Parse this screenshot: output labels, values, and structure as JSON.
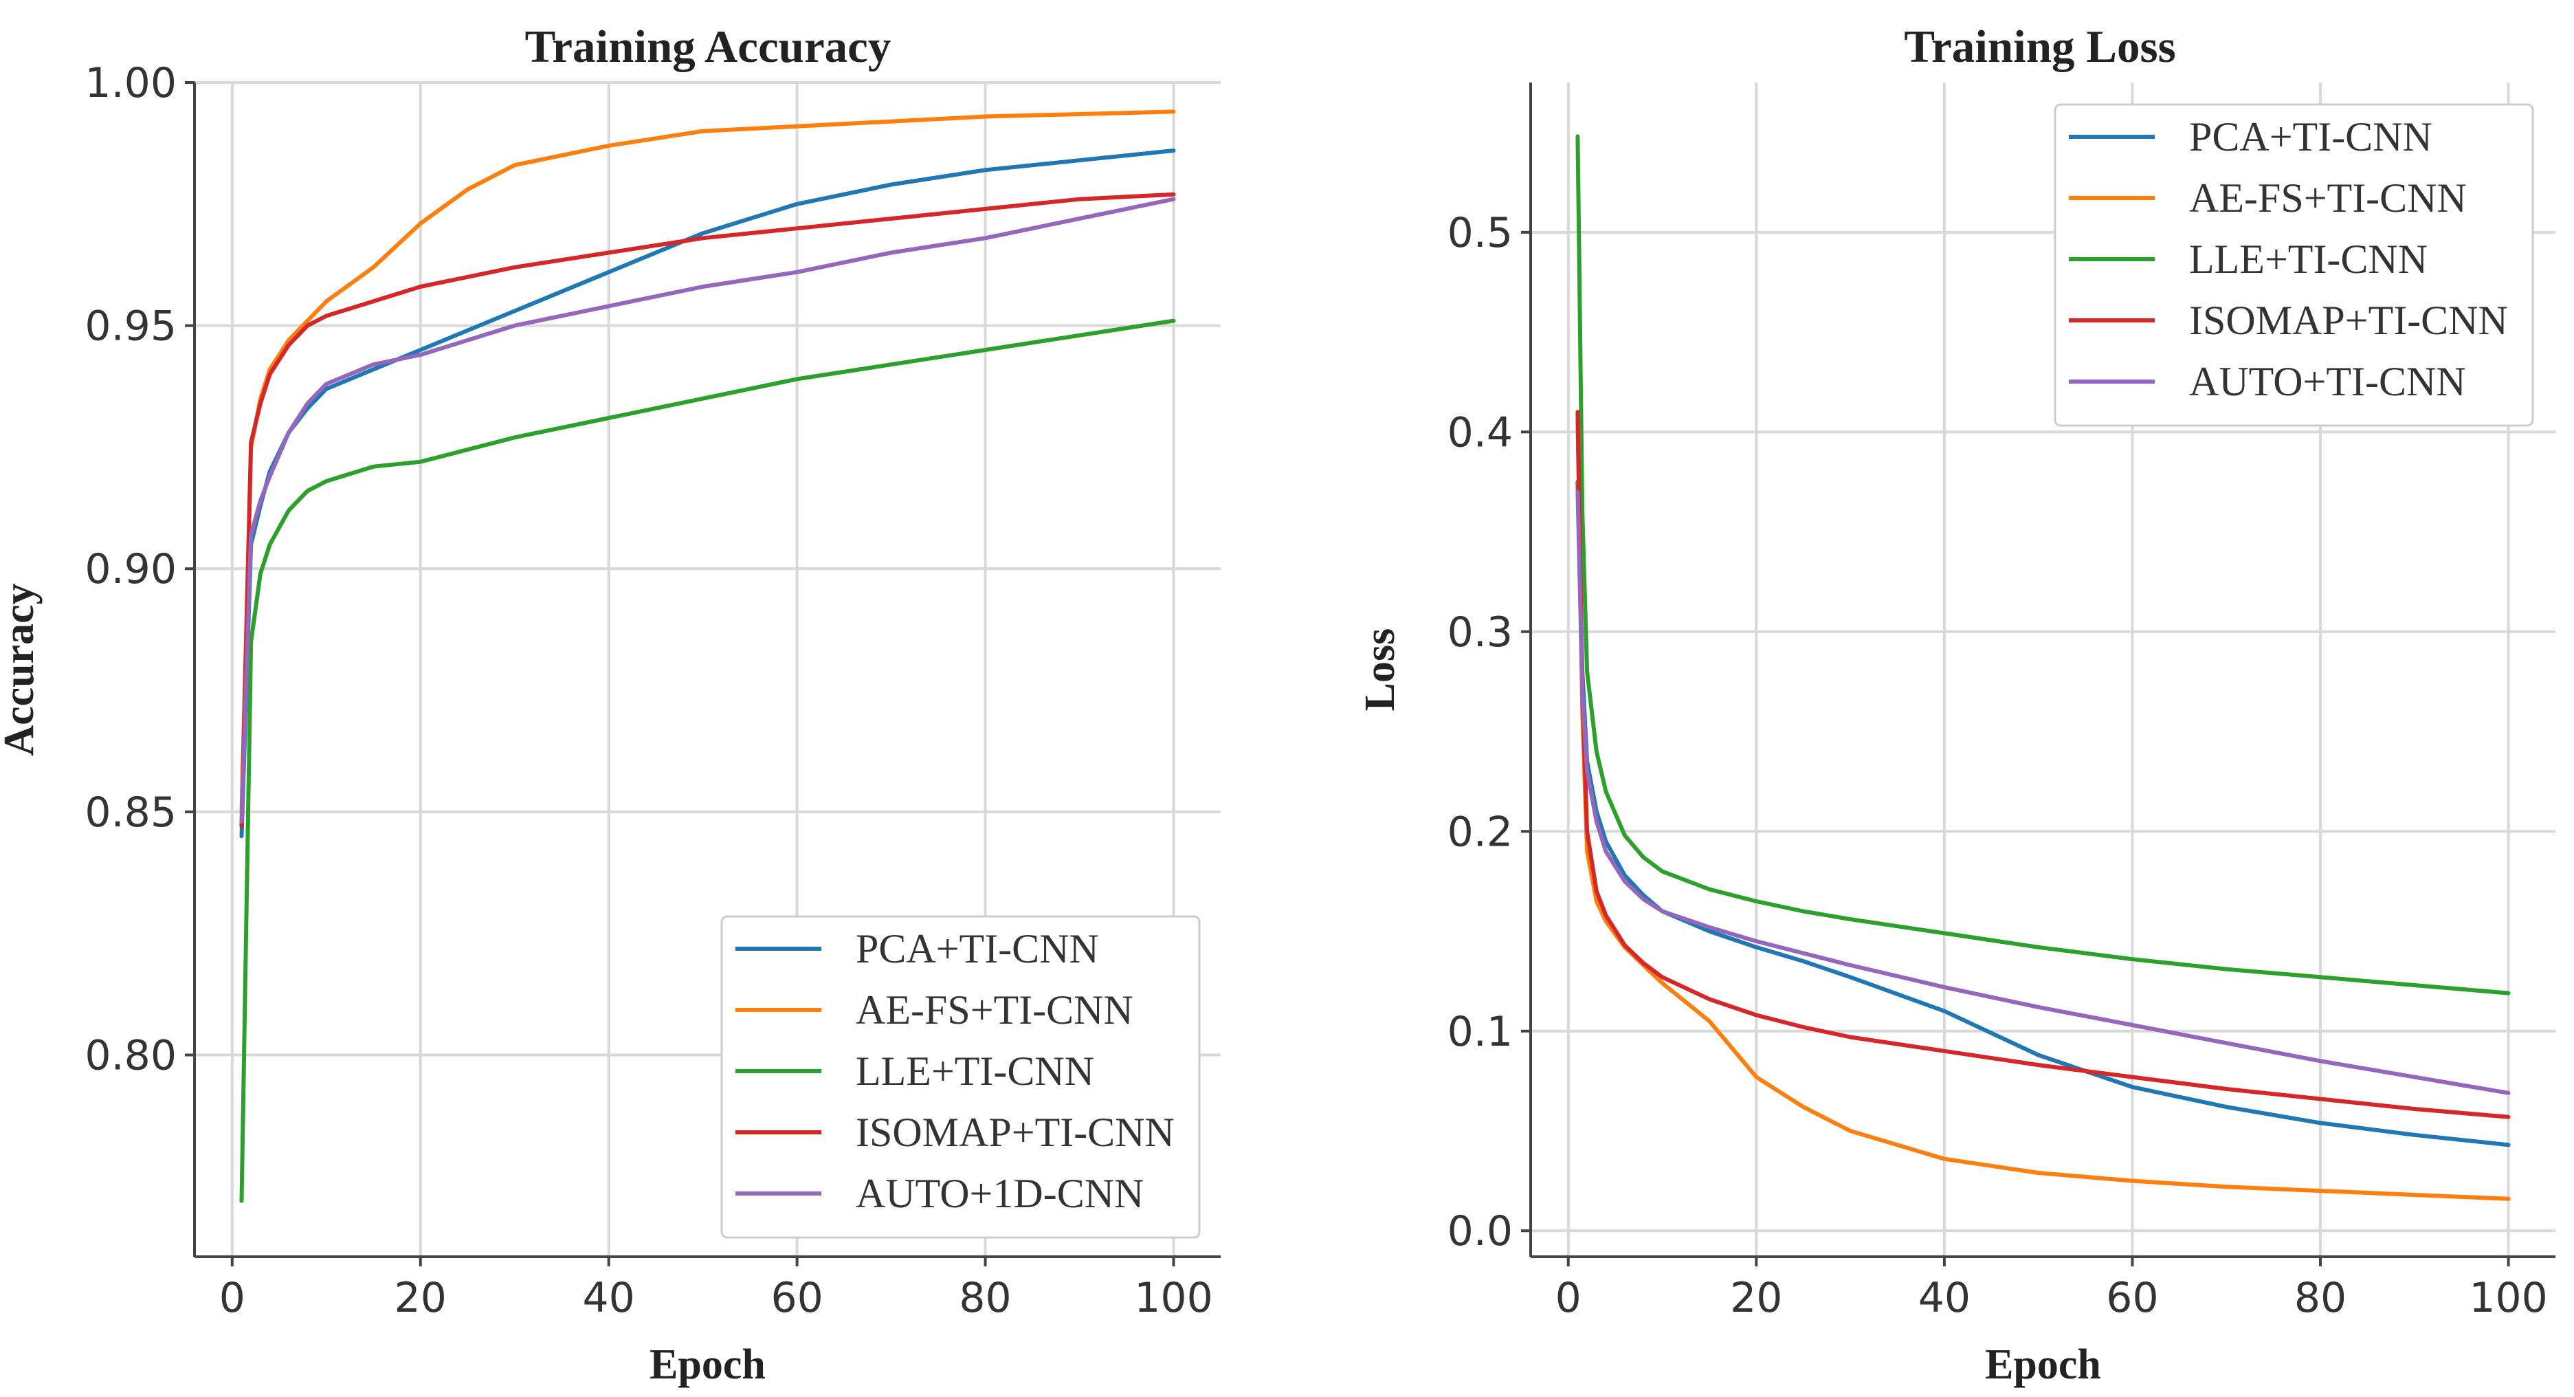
{
  "chart_data": [
    {
      "type": "line",
      "title": "Training Accuracy",
      "xlabel": "Epoch",
      "ylabel": "Accuracy",
      "xlim": [
        -4,
        105
      ],
      "ylim": [
        0.7585,
        1.0
      ],
      "xticks": [
        0,
        20,
        40,
        60,
        80,
        100
      ],
      "yticks": [
        0.8,
        0.85,
        0.9,
        0.95,
        1.0
      ],
      "ytick_labels": [
        "0.80",
        "0.85",
        "0.90",
        "0.95",
        "1.00"
      ],
      "grid": true,
      "legend_position": "lower-right",
      "series": [
        {
          "name": "PCA+TI-CNN",
          "color": "#1f77b4",
          "x": [
            1,
            2,
            3,
            4,
            6,
            8,
            10,
            15,
            20,
            30,
            40,
            50,
            60,
            70,
            80,
            90,
            100
          ],
          "y": [
            0.845,
            0.905,
            0.913,
            0.92,
            0.928,
            0.933,
            0.937,
            0.941,
            0.945,
            0.953,
            0.961,
            0.969,
            0.975,
            0.979,
            0.982,
            0.984,
            0.986
          ]
        },
        {
          "name": "AE-FS+TI-CNN",
          "color": "#ff7f0e",
          "x": [
            1,
            2,
            3,
            4,
            6,
            8,
            10,
            15,
            20,
            25,
            30,
            40,
            50,
            60,
            70,
            80,
            90,
            100
          ],
          "y": [
            0.85,
            0.925,
            0.935,
            0.941,
            0.947,
            0.951,
            0.955,
            0.962,
            0.971,
            0.978,
            0.983,
            0.987,
            0.99,
            0.991,
            0.992,
            0.993,
            0.9935,
            0.994
          ]
        },
        {
          "name": "LLE+TI-CNN",
          "color": "#2ca02c",
          "x": [
            1,
            2,
            3,
            4,
            6,
            8,
            10,
            15,
            20,
            30,
            40,
            50,
            60,
            70,
            80,
            90,
            100
          ],
          "y": [
            0.77,
            0.885,
            0.899,
            0.905,
            0.912,
            0.916,
            0.918,
            0.921,
            0.922,
            0.927,
            0.931,
            0.935,
            0.939,
            0.942,
            0.945,
            0.948,
            0.951
          ]
        },
        {
          "name": "ISOMAP+TI-CNN",
          "color": "#d62728",
          "x": [
            1,
            2,
            3,
            4,
            6,
            8,
            10,
            15,
            20,
            30,
            40,
            50,
            60,
            70,
            80,
            90,
            100
          ],
          "y": [
            0.847,
            0.926,
            0.934,
            0.94,
            0.946,
            0.95,
            0.952,
            0.955,
            0.958,
            0.962,
            0.965,
            0.968,
            0.97,
            0.972,
            0.974,
            0.976,
            0.977
          ]
        },
        {
          "name": "AUTO+1D-CNN",
          "color": "#9467bd",
          "x": [
            1,
            2,
            3,
            4,
            6,
            8,
            10,
            15,
            20,
            30,
            40,
            50,
            60,
            70,
            80,
            90,
            100
          ],
          "y": [
            0.848,
            0.907,
            0.914,
            0.919,
            0.928,
            0.934,
            0.938,
            0.942,
            0.944,
            0.95,
            0.954,
            0.958,
            0.961,
            0.965,
            0.968,
            0.972,
            0.976
          ]
        }
      ]
    },
    {
      "type": "line",
      "title": "Training Loss",
      "xlabel": "Epoch",
      "ylabel": "Loss",
      "xlim": [
        -4,
        105
      ],
      "ylim": [
        -0.013,
        0.575
      ],
      "xticks": [
        0,
        20,
        40,
        60,
        80,
        100
      ],
      "yticks": [
        0.0,
        0.1,
        0.2,
        0.3,
        0.4,
        0.5
      ],
      "ytick_labels": [
        "0.0",
        "0.1",
        "0.2",
        "0.3",
        "0.4",
        "0.5"
      ],
      "grid": true,
      "legend_position": "upper-right",
      "series": [
        {
          "name": "PCA+TI-CNN",
          "color": "#1f77b4",
          "x": [
            1,
            1.5,
            2,
            3,
            4,
            6,
            8,
            10,
            15,
            20,
            25,
            30,
            40,
            50,
            60,
            70,
            80,
            90,
            100
          ],
          "y": [
            0.375,
            0.28,
            0.235,
            0.21,
            0.195,
            0.178,
            0.168,
            0.16,
            0.15,
            0.142,
            0.135,
            0.127,
            0.11,
            0.088,
            0.072,
            0.062,
            0.054,
            0.048,
            0.043
          ]
        },
        {
          "name": "AE-FS+TI-CNN",
          "color": "#ff7f0e",
          "x": [
            1,
            1.5,
            2,
            3,
            4,
            6,
            8,
            10,
            15,
            20,
            25,
            30,
            40,
            50,
            60,
            70,
            80,
            90,
            100
          ],
          "y": [
            0.405,
            0.26,
            0.19,
            0.165,
            0.155,
            0.142,
            0.133,
            0.124,
            0.105,
            0.077,
            0.062,
            0.05,
            0.036,
            0.029,
            0.025,
            0.022,
            0.02,
            0.018,
            0.016
          ]
        },
        {
          "name": "LLE+TI-CNN",
          "color": "#2ca02c",
          "x": [
            1,
            1.5,
            2,
            3,
            4,
            6,
            8,
            10,
            15,
            20,
            25,
            30,
            40,
            50,
            60,
            70,
            80,
            90,
            100
          ],
          "y": [
            0.548,
            0.36,
            0.28,
            0.24,
            0.22,
            0.198,
            0.187,
            0.18,
            0.171,
            0.165,
            0.16,
            0.156,
            0.149,
            0.142,
            0.136,
            0.131,
            0.127,
            0.123,
            0.119
          ]
        },
        {
          "name": "ISOMAP+TI-CNN",
          "color": "#d62728",
          "x": [
            1,
            1.5,
            2,
            3,
            4,
            6,
            8,
            10,
            15,
            20,
            25,
            30,
            40,
            50,
            60,
            70,
            80,
            90,
            100
          ],
          "y": [
            0.41,
            0.27,
            0.2,
            0.17,
            0.158,
            0.143,
            0.134,
            0.127,
            0.116,
            0.108,
            0.102,
            0.097,
            0.09,
            0.083,
            0.077,
            0.071,
            0.066,
            0.061,
            0.057
          ]
        },
        {
          "name": "AUTO+TI-CNN",
          "color": "#9467bd",
          "x": [
            1,
            1.5,
            2,
            3,
            4,
            6,
            8,
            10,
            15,
            20,
            25,
            30,
            40,
            50,
            60,
            70,
            80,
            90,
            100
          ],
          "y": [
            0.37,
            0.27,
            0.23,
            0.205,
            0.19,
            0.175,
            0.166,
            0.16,
            0.152,
            0.145,
            0.139,
            0.133,
            0.122,
            0.112,
            0.103,
            0.094,
            0.085,
            0.077,
            0.069
          ]
        }
      ]
    }
  ]
}
